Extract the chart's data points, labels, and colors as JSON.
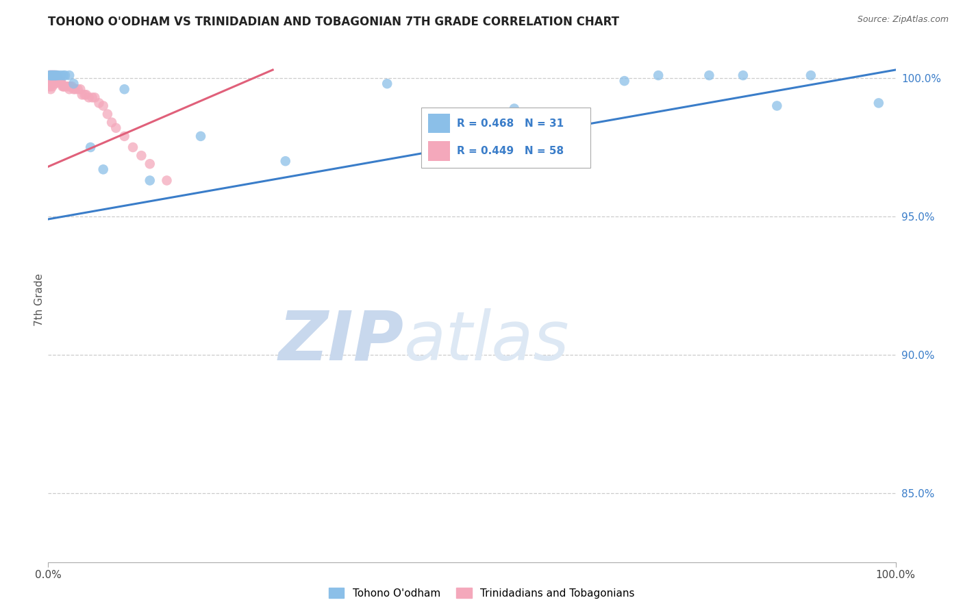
{
  "title": "TOHONO O'ODHAM VS TRINIDADIAN AND TOBAGONIAN 7TH GRADE CORRELATION CHART",
  "source": "Source: ZipAtlas.com",
  "ylabel": "7th Grade",
  "ytick_vals": [
    1.0,
    0.95,
    0.9,
    0.85
  ],
  "ytick_labels": [
    "100.0%",
    "95.0%",
    "90.0%",
    "85.0%"
  ],
  "xmin": 0.0,
  "xmax": 1.0,
  "ymin": 0.825,
  "ymax": 1.015,
  "blue_label": "Tohono O'odham",
  "pink_label": "Trinidadians and Tobagonians",
  "legend_r_blue": "R = 0.468",
  "legend_n_blue": "N = 31",
  "legend_r_pink": "R = 0.449",
  "legend_n_pink": "N = 58",
  "blue_scatter_color": "#8bbfe8",
  "pink_scatter_color": "#f4a8bb",
  "blue_line_color": "#3a7dc9",
  "pink_line_color": "#e0607a",
  "legend_text_color": "#3a7dc9",
  "blue_x": [
    0.002,
    0.003,
    0.004,
    0.005,
    0.006,
    0.007,
    0.008,
    0.009,
    0.01,
    0.012,
    0.015,
    0.018,
    0.02,
    0.025,
    0.03,
    0.05,
    0.065,
    0.09,
    0.12,
    0.18,
    0.28,
    0.4,
    0.55,
    0.62,
    0.68,
    0.72,
    0.78,
    0.82,
    0.86,
    0.9,
    0.98
  ],
  "blue_y": [
    1.001,
    1.001,
    1.001,
    1.001,
    1.001,
    1.001,
    1.001,
    1.001,
    1.001,
    1.001,
    1.001,
    1.001,
    1.001,
    1.001,
    0.998,
    0.975,
    0.967,
    0.996,
    0.963,
    0.979,
    0.97,
    0.998,
    0.989,
    0.978,
    0.999,
    1.001,
    1.001,
    1.001,
    0.99,
    1.001,
    0.991
  ],
  "pink_x": [
    0.001,
    0.001,
    0.001,
    0.002,
    0.002,
    0.002,
    0.003,
    0.003,
    0.003,
    0.004,
    0.004,
    0.005,
    0.005,
    0.005,
    0.006,
    0.006,
    0.007,
    0.007,
    0.008,
    0.008,
    0.009,
    0.01,
    0.01,
    0.011,
    0.012,
    0.013,
    0.014,
    0.015,
    0.016,
    0.017,
    0.018,
    0.019,
    0.02,
    0.022,
    0.024,
    0.025,
    0.026,
    0.028,
    0.03,
    0.032,
    0.035,
    0.038,
    0.04,
    0.043,
    0.045,
    0.048,
    0.052,
    0.055,
    0.06,
    0.065,
    0.07,
    0.075,
    0.08,
    0.09,
    0.1,
    0.11,
    0.12,
    0.14
  ],
  "pink_y": [
    1.001,
    0.999,
    0.997,
    1.001,
    0.999,
    0.997,
    1.001,
    0.999,
    0.996,
    1.001,
    0.998,
    1.001,
    0.999,
    0.997,
    1.001,
    0.999,
    1.001,
    0.998,
    1.001,
    0.998,
    0.999,
    1.001,
    0.999,
    0.999,
    0.999,
    0.999,
    0.999,
    0.999,
    0.998,
    0.997,
    0.997,
    0.997,
    0.997,
    0.997,
    0.997,
    0.996,
    0.997,
    0.997,
    0.996,
    0.996,
    0.996,
    0.996,
    0.994,
    0.994,
    0.994,
    0.993,
    0.993,
    0.993,
    0.991,
    0.99,
    0.987,
    0.984,
    0.982,
    0.979,
    0.975,
    0.972,
    0.969,
    0.963
  ],
  "blue_trend_x": [
    0.0,
    1.0
  ],
  "blue_trend_y": [
    0.949,
    1.003
  ],
  "pink_trend_x": [
    0.0,
    0.265
  ],
  "pink_trend_y": [
    0.968,
    1.003
  ],
  "watermark_zip": "ZIP",
  "watermark_atlas": "atlas",
  "watermark_color": "#c8d8ed",
  "grid_color": "#cccccc",
  "background_color": "#ffffff",
  "title_fontsize": 12,
  "source_fontsize": 9,
  "tick_fontsize": 11
}
